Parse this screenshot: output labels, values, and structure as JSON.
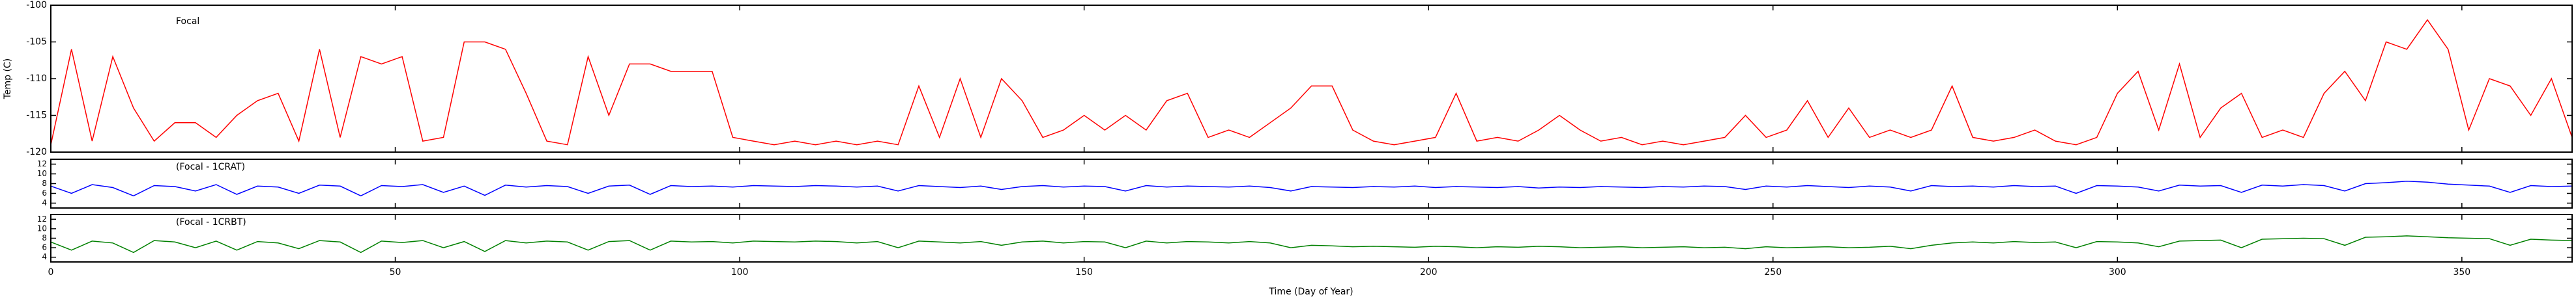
{
  "chart_data": [
    {
      "type": "line",
      "annotation": "Focal",
      "ylabel": "Temp (C)",
      "xlim": [
        0,
        366
      ],
      "ylim": [
        -120,
        -100
      ],
      "yticks": [
        -100,
        -105,
        -110,
        -115,
        -120
      ],
      "x": [
        0,
        3,
        6,
        9,
        12,
        15,
        18,
        21,
        24,
        27,
        30,
        33,
        36,
        39,
        42,
        45,
        48,
        51,
        54,
        57,
        60,
        63,
        66,
        69,
        72,
        75,
        78,
        81,
        84,
        87,
        90,
        93,
        96,
        99,
        102,
        105,
        108,
        111,
        114,
        117,
        120,
        123,
        126,
        129,
        132,
        135,
        138,
        141,
        144,
        147,
        150,
        153,
        156,
        159,
        162,
        165,
        168,
        171,
        174,
        177,
        180,
        183,
        186,
        189,
        192,
        195,
        198,
        201,
        204,
        207,
        210,
        213,
        216,
        219,
        222,
        225,
        228,
        231,
        234,
        237,
        240,
        243,
        246,
        249,
        252,
        255,
        258,
        261,
        264,
        267,
        270,
        273,
        276,
        279,
        282,
        285,
        288,
        291,
        294,
        297,
        300,
        303,
        306,
        309,
        312,
        315,
        318,
        321,
        324,
        327,
        330,
        333,
        336,
        339,
        342,
        345,
        348,
        351,
        354,
        357,
        360,
        363,
        366
      ],
      "series": [
        {
          "color": "#ff0000",
          "values": [
            -119,
            -106,
            -118.5,
            -107,
            -114,
            -118.5,
            -116,
            -116,
            -118,
            -115,
            -113,
            -112,
            -118.5,
            -106,
            -118,
            -107,
            -108,
            -107,
            -118.5,
            -118,
            -105,
            -105,
            -106,
            -112,
            -118.5,
            -119,
            -107,
            -115,
            -108,
            -108,
            -109,
            -109,
            -109,
            -118,
            -118.5,
            -119,
            -118.5,
            -119,
            -118.5,
            -119,
            -118.5,
            -119,
            -111,
            -118,
            -110,
            -118,
            -110,
            -113,
            -118,
            -117,
            -115,
            -117,
            -115,
            -117,
            -113,
            -112,
            -118,
            -117,
            -118,
            -116,
            -114,
            -111,
            -111,
            -117,
            -118.5,
            -119,
            -118.5,
            -118,
            -112,
            -118.5,
            -118,
            -118.5,
            -117,
            -115,
            -117,
            -118.5,
            -118,
            -119,
            -118.5,
            -119,
            -118.5,
            -118,
            -115,
            -118,
            -117,
            -113,
            -118,
            -114,
            -118,
            -117,
            -118,
            -117,
            -111,
            -118,
            -118.5,
            -118,
            -117,
            -118.5,
            -119,
            -118,
            -112,
            -109,
            -117,
            -108,
            -118,
            -114,
            -112,
            -118,
            -117,
            -118,
            -112,
            -109,
            -113,
            -105,
            -106,
            -102,
            -106,
            -117,
            -110,
            -111,
            -115,
            -110,
            -118
          ]
        }
      ]
    },
    {
      "type": "line",
      "annotation": "(Focal - 1CRAT)",
      "xlim": [
        0,
        366
      ],
      "ylim": [
        3,
        13
      ],
      "yticks": [
        4,
        6,
        8,
        10,
        12
      ],
      "x": [
        0,
        3,
        6,
        9,
        12,
        15,
        18,
        21,
        24,
        27,
        30,
        33,
        36,
        39,
        42,
        45,
        48,
        51,
        54,
        57,
        60,
        63,
        66,
        69,
        72,
        75,
        78,
        81,
        84,
        87,
        90,
        93,
        96,
        99,
        102,
        105,
        108,
        111,
        114,
        117,
        120,
        123,
        126,
        129,
        132,
        135,
        138,
        141,
        144,
        147,
        150,
        153,
        156,
        159,
        162,
        165,
        168,
        171,
        174,
        177,
        180,
        183,
        186,
        189,
        192,
        195,
        198,
        201,
        204,
        207,
        210,
        213,
        216,
        219,
        222,
        225,
        228,
        231,
        234,
        237,
        240,
        243,
        246,
        249,
        252,
        255,
        258,
        261,
        264,
        267,
        270,
        273,
        276,
        279,
        282,
        285,
        288,
        291,
        294,
        297,
        300,
        303,
        306,
        309,
        312,
        315,
        318,
        321,
        324,
        327,
        330,
        333,
        336,
        339,
        342,
        345,
        348,
        351,
        354,
        357,
        360,
        363,
        366
      ],
      "series": [
        {
          "color": "#0000ff",
          "values": [
            7.5,
            6,
            7.8,
            7.2,
            5.5,
            7.6,
            7.4,
            6.5,
            7.8,
            5.8,
            7.5,
            7.3,
            6,
            7.7,
            7.5,
            5.5,
            7.6,
            7.4,
            7.8,
            6.2,
            7.5,
            5.6,
            7.7,
            7.3,
            7.6,
            7.4,
            6,
            7.5,
            7.7,
            5.8,
            7.6,
            7.4,
            7.5,
            7.3,
            7.6,
            7.5,
            7.4,
            7.6,
            7.5,
            7.3,
            7.5,
            6.5,
            7.6,
            7.4,
            7.2,
            7.5,
            6.8,
            7.4,
            7.6,
            7.3,
            7.5,
            7.4,
            6.5,
            7.6,
            7.3,
            7.5,
            7.4,
            7.3,
            7.5,
            7.2,
            6.5,
            7.4,
            7.3,
            7.2,
            7.4,
            7.3,
            7.5,
            7.2,
            7.4,
            7.3,
            7.2,
            7.4,
            7.1,
            7.3,
            7.2,
            7.4,
            7.3,
            7.2,
            7.4,
            7.3,
            7.5,
            7.4,
            6.8,
            7.5,
            7.3,
            7.6,
            7.4,
            7.2,
            7.5,
            7.3,
            6.5,
            7.6,
            7.4,
            7.5,
            7.3,
            7.6,
            7.4,
            7.5,
            6,
            7.6,
            7.5,
            7.3,
            6.5,
            7.7,
            7.5,
            7.6,
            6.2,
            7.7,
            7.5,
            7.8,
            7.6,
            6.5,
            8,
            8.2,
            8.5,
            8.3,
            7.9,
            7.7,
            7.5,
            6.2,
            7.6,
            7.4,
            7.5
          ]
        }
      ]
    },
    {
      "type": "line",
      "annotation": "(Focal - 1CRBT)",
      "xlabel": "Time (Day of Year)",
      "xlim": [
        0,
        366
      ],
      "xticks": [
        0,
        50,
        100,
        150,
        200,
        250,
        300,
        350
      ],
      "ylim": [
        3,
        13
      ],
      "yticks": [
        4,
        6,
        8,
        10,
        12
      ],
      "x": [
        0,
        3,
        6,
        9,
        12,
        15,
        18,
        21,
        24,
        27,
        30,
        33,
        36,
        39,
        42,
        45,
        48,
        51,
        54,
        57,
        60,
        63,
        66,
        69,
        72,
        75,
        78,
        81,
        84,
        87,
        90,
        93,
        96,
        99,
        102,
        105,
        108,
        111,
        114,
        117,
        120,
        123,
        126,
        129,
        132,
        135,
        138,
        141,
        144,
        147,
        150,
        153,
        156,
        159,
        162,
        165,
        168,
        171,
        174,
        177,
        180,
        183,
        186,
        189,
        192,
        195,
        198,
        201,
        204,
        207,
        210,
        213,
        216,
        219,
        222,
        225,
        228,
        231,
        234,
        237,
        240,
        243,
        246,
        249,
        252,
        255,
        258,
        261,
        264,
        267,
        270,
        273,
        276,
        279,
        282,
        285,
        288,
        291,
        294,
        297,
        300,
        303,
        306,
        309,
        312,
        315,
        318,
        321,
        324,
        327,
        330,
        333,
        336,
        339,
        342,
        345,
        348,
        351,
        354,
        357,
        360,
        363,
        366
      ],
      "series": [
        {
          "color": "#008000",
          "values": [
            7.2,
            5.5,
            7.4,
            7,
            5,
            7.5,
            7.2,
            6,
            7.4,
            5.5,
            7.3,
            7,
            5.8,
            7.5,
            7.2,
            5,
            7.4,
            7.1,
            7.5,
            6,
            7.3,
            5.2,
            7.5,
            7,
            7.4,
            7.2,
            5.5,
            7.3,
            7.5,
            5.5,
            7.4,
            7.2,
            7.3,
            7,
            7.4,
            7.3,
            7.2,
            7.4,
            7.3,
            7,
            7.3,
            6,
            7.4,
            7.2,
            7,
            7.3,
            6.5,
            7.2,
            7.4,
            7,
            7.3,
            7.2,
            6,
            7.4,
            7,
            7.3,
            7.2,
            7,
            7.3,
            7,
            6,
            6.5,
            6.4,
            6.2,
            6.3,
            6.2,
            6.1,
            6.3,
            6.2,
            6,
            6.2,
            6.1,
            6.3,
            6.2,
            6,
            6.1,
            6.2,
            6,
            6.1,
            6.2,
            6,
            6.1,
            5.8,
            6.2,
            6,
            6.1,
            6.2,
            6,
            6.1,
            6.3,
            5.8,
            6.5,
            7,
            7.2,
            7,
            7.3,
            7.1,
            7.2,
            6,
            7.3,
            7.2,
            7,
            6.2,
            7.4,
            7.5,
            7.6,
            6,
            7.8,
            7.9,
            8,
            7.9,
            6.5,
            8.2,
            8.3,
            8.5,
            8.3,
            8.1,
            8,
            7.9,
            6.5,
            7.8,
            7.6,
            7.5
          ]
        }
      ]
    }
  ]
}
